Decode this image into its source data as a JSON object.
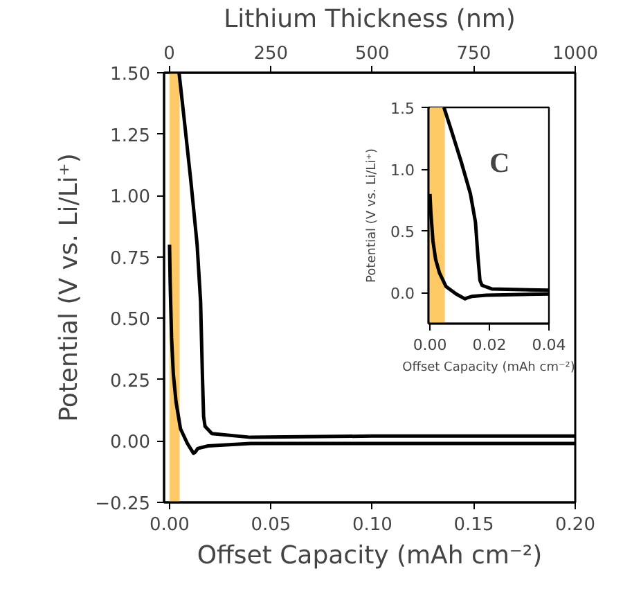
{
  "chart_data": [
    {
      "type": "line",
      "xlabel": "Offset Capacity (mAh cm⁻²)",
      "ylabel": "Potential (V vs. Li/Li⁺)",
      "x2label": "Lithium Thickness (nm)",
      "xlim": [
        -0.0027,
        0.2
      ],
      "ylim": [
        -0.25,
        1.5
      ],
      "xticks": [
        {
          "value": 0,
          "label": "0.00"
        },
        {
          "value": 0.05,
          "label": "0.05"
        },
        {
          "value": 0.1,
          "label": "0.10"
        },
        {
          "value": 0.15,
          "label": "0.15"
        },
        {
          "value": 0.2,
          "label": "0.20"
        }
      ],
      "yticks": [
        {
          "value": -0.25,
          "label": "−0.25"
        },
        {
          "value": 0,
          "label": "0.00"
        },
        {
          "value": 0.25,
          "label": "0.25"
        },
        {
          "value": 0.5,
          "label": "0.50"
        },
        {
          "value": 0.75,
          "label": "0.75"
        },
        {
          "value": 1.0,
          "label": "1.00"
        },
        {
          "value": 1.25,
          "label": "1.25"
        },
        {
          "value": 1.5,
          "label": "1.50"
        }
      ],
      "x2lim": [
        -13,
        1000
      ],
      "x2ticks": [
        0,
        250,
        500,
        750,
        1000
      ],
      "bands": [
        {
          "axis": "x",
          "from": 0,
          "to": 0.005,
          "color": "#ffc966"
        }
      ],
      "grid": false,
      "series": [
        {
          "color": "#000000",
          "x": [
            0,
            0.0003,
            0.001,
            0.0019,
            0.0032,
            0.0054,
            0.0088,
            0.0118,
            0.0127,
            0.014,
            0.019,
            0.04,
            0.1,
            0.2
          ],
          "values": [
            0.8,
            0.65,
            0.42,
            0.27,
            0.16,
            0.05,
            -0.01,
            -0.05,
            -0.045,
            -0.03,
            -0.02,
            -0.01,
            -0.01,
            -0.01
          ]
        },
        {
          "color": "#000000",
          "x": [
            0.0047,
            0.0071,
            0.0105,
            0.0136,
            0.0153,
            0.0162,
            0.0168,
            0.0175,
            0.0209,
            0.04,
            0.1,
            0.2
          ],
          "values": [
            1.5,
            1.32,
            1.06,
            0.8,
            0.57,
            0.27,
            0.1,
            0.06,
            0.03,
            0.015,
            0.02,
            0.02
          ]
        }
      ]
    },
    {
      "type": "line",
      "xlabel": "Offset Capacity (mAh cm⁻²)",
      "ylabel": "Potential (V vs. Li/Li⁺)",
      "xlim": [
        -0.0005,
        0.04
      ],
      "ylim": [
        -0.25,
        1.5
      ],
      "xticks": [
        {
          "value": 0,
          "label": "0.00"
        },
        {
          "value": 0.02,
          "label": "0.02"
        },
        {
          "value": 0.04,
          "label": "0.04"
        }
      ],
      "yticks": [
        {
          "value": 0,
          "label": "0.0"
        },
        {
          "value": 0.5,
          "label": "0.5"
        },
        {
          "value": 1.0,
          "label": "1.0"
        },
        {
          "value": 1.5,
          "label": "1.5"
        }
      ],
      "bands": [
        {
          "axis": "x",
          "from": 0,
          "to": 0.005,
          "color": "#ffc966"
        }
      ],
      "grid": false,
      "annotations": [
        "C"
      ],
      "series": [
        {
          "color": "#000000",
          "x": [
            0,
            0.0003,
            0.001,
            0.0019,
            0.0032,
            0.0054,
            0.0088,
            0.0118,
            0.0127,
            0.014,
            0.019,
            0.04
          ],
          "values": [
            0.8,
            0.65,
            0.42,
            0.27,
            0.16,
            0.05,
            -0.01,
            -0.05,
            -0.04,
            -0.03,
            -0.02,
            -0.01
          ]
        },
        {
          "color": "#000000",
          "x": [
            0.0047,
            0.0071,
            0.0105,
            0.0136,
            0.0153,
            0.0162,
            0.0168,
            0.0175,
            0.0209,
            0.04
          ],
          "values": [
            1.5,
            1.32,
            1.06,
            0.8,
            0.57,
            0.27,
            0.1,
            0.06,
            0.03,
            0.02
          ]
        }
      ]
    }
  ]
}
